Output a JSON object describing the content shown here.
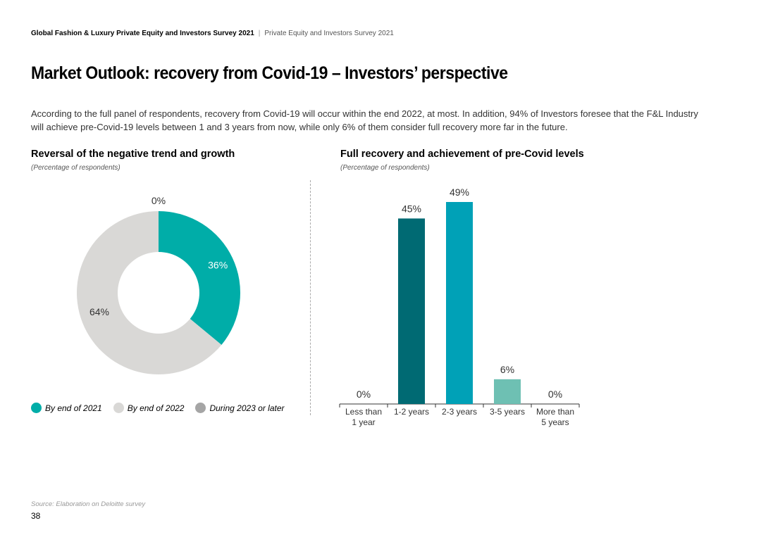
{
  "header": {
    "report_title": "Global Fashion & Luxury Private Equity and Investors Survey 2021",
    "separator": "|",
    "subtitle": "Private Equity and Investors Survey 2021"
  },
  "page_title": "Market Outlook: recovery from Covid-19 – Investors’ perspective",
  "intro": "According to the full panel of respondents, recovery from Covid-19 will occur within the end 2022, at most. In addition, 94% of Investors foresee that the F&L Industry will achieve pre-Covid-19 levels between 1 and 3 years from now, while only 6% of them consider full recovery more far in the future.",
  "colors": {
    "teal": "#00ada8",
    "light_gray": "#d9d8d6",
    "mid_gray": "#a5a5a5",
    "dark_teal": "#006a73",
    "mid_teal": "#00a1b7",
    "light_teal": "#6ec0b3"
  },
  "chart_data": [
    {
      "type": "pie",
      "title": "Reversal of the negative trend and growth",
      "subtitle": "(Percentage of respondents)",
      "series": [
        {
          "name": "By end of 2021",
          "value": 36,
          "label": "36%",
          "color": "#00ada8"
        },
        {
          "name": "By end of 2022",
          "value": 64,
          "label": "64%",
          "color": "#d9d8d6"
        },
        {
          "name": "During 2023 or later",
          "value": 0,
          "label": "0%",
          "color": "#a5a5a5"
        }
      ],
      "donut": true,
      "legend": "bottom-left"
    },
    {
      "type": "bar",
      "title": "Full recovery and achievement of pre-Covid levels",
      "subtitle": "(Percentage of respondents)",
      "categories": [
        [
          "Less than",
          "1 year"
        ],
        [
          "1-2 years"
        ],
        [
          "2-3 years"
        ],
        [
          "3-5 years"
        ],
        [
          "More than",
          "5 years"
        ]
      ],
      "values": [
        0,
        45,
        49,
        6,
        0
      ],
      "labels": [
        "0%",
        "45%",
        "49%",
        "6%",
        "0%"
      ],
      "colors": [
        "#006a73",
        "#006a73",
        "#00a1b7",
        "#6ec0b3",
        "#6ec0b3"
      ],
      "ylim": [
        0,
        49
      ],
      "grid": false
    }
  ],
  "source": "Source: Elaboration on Deloitte survey",
  "page_number": "38"
}
